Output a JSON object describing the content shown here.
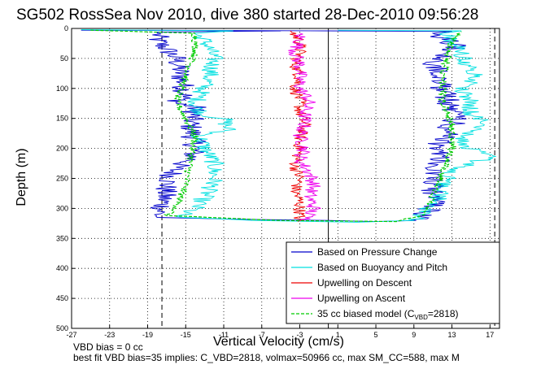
{
  "title": "SG502 RossSea Nov 2010, dive 380 started 28-Dec-2010 09:56:28",
  "footer": {
    "line1": "VBD bias = 0 cc",
    "line2": "best fit VBD bias=35 implies: C_VBD=2818, volmax=50966 cc, max SM_CC=588, max M"
  },
  "chart_data": {
    "type": "line",
    "xlabel": "Vertical Velocity (cm/s)",
    "ylabel": "Depth (m)",
    "xlim": [
      -27,
      18
    ],
    "ylim": [
      500,
      0
    ],
    "y_reversed": true,
    "x_ticks": [
      -27,
      -23,
      -19,
      -15,
      -11,
      -7,
      -3,
      1,
      5,
      9,
      13,
      17
    ],
    "y_ticks": [
      0,
      50,
      100,
      150,
      200,
      250,
      300,
      350,
      400,
      450,
      500
    ],
    "grid": true,
    "legend_position": "bottom-right",
    "legend": [
      {
        "label": "Based on Pressure Change",
        "color": "#0000cc",
        "style": "solid"
      },
      {
        "label": "Based on Buoyancy and Pitch",
        "color": "#00e0e0",
        "style": "solid"
      },
      {
        "label": "Upwelling on Descent",
        "color": "#ee0000",
        "style": "solid"
      },
      {
        "label": "Upwelling on Ascent",
        "color": "#ee00ee",
        "style": "solid"
      },
      {
        "label": "35 cc biased model (C",
        "sub": "VBD",
        "tail": "=2818)",
        "color": "#00cc00",
        "style": "dashed"
      }
    ],
    "reference_lines": [
      {
        "x": -17.5,
        "style": "dashed",
        "color": "#000000"
      },
      {
        "x": 17.5,
        "style": "dashed",
        "color": "#000000"
      },
      {
        "x": 0,
        "style": "solid",
        "color": "#000000"
      }
    ],
    "series": [
      {
        "color": "#0000cc",
        "jitter": 1.3,
        "points": [
          [
            -26,
            3
          ],
          [
            -5,
            4
          ],
          [
            -18,
            6
          ],
          [
            -18,
            20
          ],
          [
            -16,
            50
          ],
          [
            -15.5,
            80
          ],
          [
            -15,
            110
          ],
          [
            -16,
            125
          ],
          [
            -14,
            130
          ],
          [
            -14.5,
            160
          ],
          [
            -14,
            200
          ],
          [
            -14.5,
            220
          ],
          [
            -16,
            230
          ],
          [
            -17,
            260
          ],
          [
            -17.5,
            300
          ],
          [
            -18,
            315
          ],
          [
            -10,
            318
          ],
          [
            0,
            320
          ],
          [
            5,
            322
          ],
          [
            9,
            320
          ],
          [
            10,
            310
          ],
          [
            11,
            295
          ],
          [
            11,
            270
          ],
          [
            11,
            240
          ],
          [
            12,
            215
          ],
          [
            11.5,
            195
          ],
          [
            12.5,
            175
          ],
          [
            12,
            165
          ],
          [
            13.5,
            160
          ],
          [
            13,
            140
          ],
          [
            12,
            100
          ],
          [
            12,
            80
          ],
          [
            11,
            55
          ],
          [
            12.5,
            45
          ],
          [
            13.5,
            30
          ],
          [
            12,
            15
          ],
          [
            11,
            8
          ],
          [
            13,
            5
          ],
          [
            0,
            4
          ],
          [
            -20,
            3
          ]
        ]
      },
      {
        "color": "#00e0e0",
        "jitter": 1.0,
        "points": [
          [
            -26,
            2
          ],
          [
            -10,
            4
          ],
          [
            -14,
            8
          ],
          [
            -13,
            20
          ],
          [
            -12,
            50
          ],
          [
            -12.5,
            80
          ],
          [
            -13.5,
            110
          ],
          [
            -14,
            130
          ],
          [
            -13,
            145
          ],
          [
            -11,
            150
          ],
          [
            -10.5,
            170
          ],
          [
            -12.5,
            175
          ],
          [
            -13.5,
            180
          ],
          [
            -13,
            200
          ],
          [
            -12,
            225
          ],
          [
            -12,
            255
          ],
          [
            -13,
            280
          ],
          [
            -14,
            300
          ],
          [
            -16,
            315
          ],
          [
            -8,
            320
          ],
          [
            3,
            323
          ],
          [
            9,
            320
          ],
          [
            10,
            305
          ],
          [
            11.5,
            290
          ],
          [
            12,
            260
          ],
          [
            13,
            235
          ],
          [
            15,
            225
          ],
          [
            17,
            215
          ],
          [
            15,
            200
          ],
          [
            14,
            185
          ],
          [
            15,
            175
          ],
          [
            16,
            165
          ],
          [
            16.5,
            155
          ],
          [
            15,
            145
          ],
          [
            15,
            120
          ],
          [
            14,
            100
          ],
          [
            16,
            80
          ],
          [
            14.5,
            60
          ],
          [
            14,
            40
          ],
          [
            13,
            20
          ],
          [
            12,
            8
          ],
          [
            14,
            4
          ],
          [
            1,
            3
          ]
        ]
      },
      {
        "color": "#ee0000",
        "jitter": 0.7,
        "points": [
          [
            -4,
            4
          ],
          [
            -3,
            20
          ],
          [
            -3,
            40
          ],
          [
            -3.5,
            60
          ],
          [
            -3,
            80
          ],
          [
            -3.5,
            100
          ],
          [
            -3,
            120
          ],
          [
            -3,
            140
          ],
          [
            -2.5,
            160
          ],
          [
            -3,
            180
          ],
          [
            -3,
            200
          ],
          [
            -3.5,
            230
          ],
          [
            -3,
            250
          ],
          [
            -3.5,
            270
          ],
          [
            -3,
            290
          ],
          [
            -3,
            310
          ],
          [
            -3.2,
            322
          ]
        ]
      },
      {
        "color": "#ee00ee",
        "jitter": 0.8,
        "points": [
          [
            -3,
            8
          ],
          [
            -3,
            20
          ],
          [
            -3.5,
            40
          ],
          [
            -3,
            60
          ],
          [
            -3,
            80
          ],
          [
            -3,
            100
          ],
          [
            -2,
            120
          ],
          [
            -2.5,
            140
          ],
          [
            -2.5,
            160
          ],
          [
            -3,
            180
          ],
          [
            -2.5,
            200
          ],
          [
            -3,
            220
          ],
          [
            -2,
            240
          ],
          [
            -1.5,
            260
          ],
          [
            -2,
            280
          ],
          [
            -1.5,
            300
          ],
          [
            -2.5,
            320
          ]
        ]
      },
      {
        "color": "#00cc00",
        "jitter": 0.4,
        "dashed": true,
        "points": [
          [
            -25,
            3
          ],
          [
            -14,
            8
          ],
          [
            -14,
            40
          ],
          [
            -15,
            80
          ],
          [
            -16,
            120
          ],
          [
            -15,
            150
          ],
          [
            -14,
            180
          ],
          [
            -14.5,
            220
          ],
          [
            -15,
            260
          ],
          [
            -16,
            300
          ],
          [
            -17,
            312
          ],
          [
            -5,
            320
          ],
          [
            7,
            322
          ],
          [
            10,
            310
          ],
          [
            11,
            280
          ],
          [
            12,
            240
          ],
          [
            13,
            200
          ],
          [
            13,
            160
          ],
          [
            12,
            120
          ],
          [
            12,
            80
          ],
          [
            12.5,
            50
          ],
          [
            13,
            20
          ],
          [
            14,
            5
          ]
        ]
      }
    ]
  }
}
